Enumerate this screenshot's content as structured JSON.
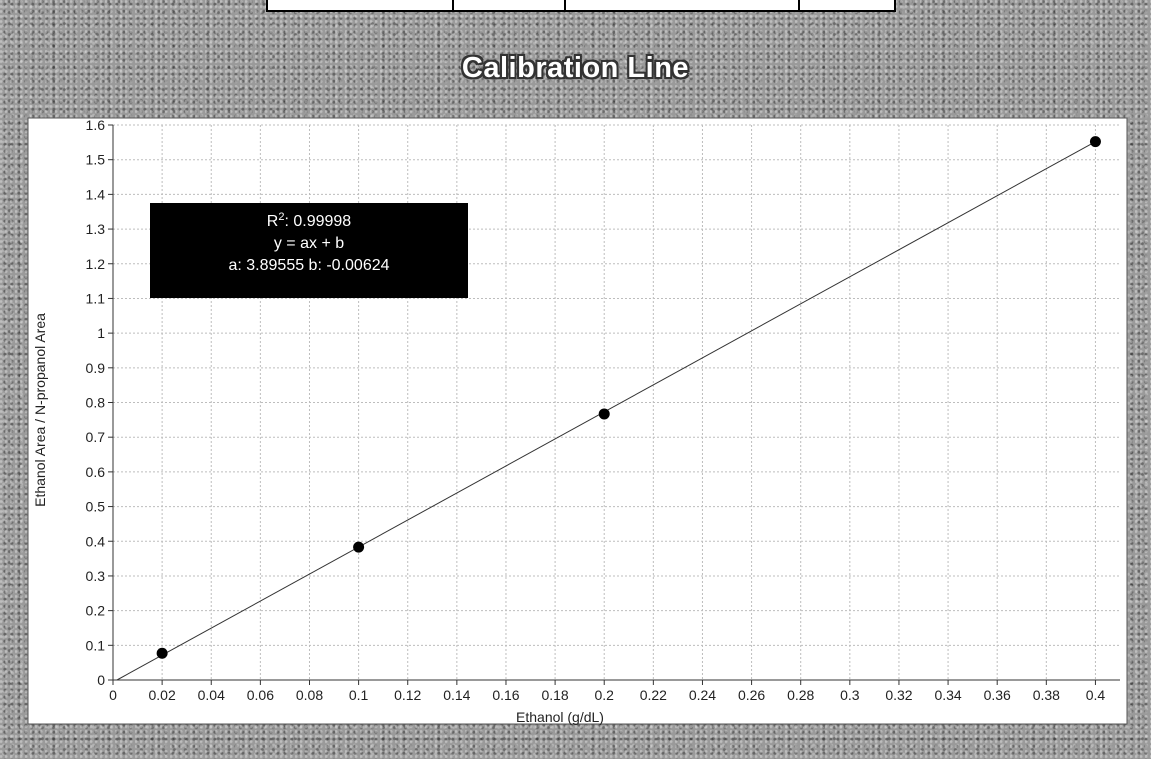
{
  "chart_data": {
    "type": "scatter",
    "title": "Calibration Line",
    "xlabel": "Ethanol (g/dL)",
    "ylabel": "Ethanol Area / N-propanol Area",
    "xlim": [
      0,
      0.41
    ],
    "ylim": [
      0,
      1.6
    ],
    "x_ticks": [
      "0",
      "0.02",
      "0.04",
      "0.06",
      "0.08",
      "0.1",
      "0.12",
      "0.14",
      "0.16",
      "0.18",
      "0.2",
      "0.22",
      "0.24",
      "0.26",
      "0.28",
      "0.3",
      "0.32",
      "0.34",
      "0.36",
      "0.38",
      "0.4"
    ],
    "y_ticks": [
      "0",
      "0.1",
      "0.2",
      "0.3",
      "0.4",
      "0.5",
      "0.6",
      "0.7",
      "0.8",
      "0.9",
      "1",
      "1.1",
      "1.2",
      "1.3",
      "1.4",
      "1.5",
      "1.6"
    ],
    "grid": true,
    "series": [
      {
        "points": [
          {
            "x": 0.02,
            "y": 0.077
          },
          {
            "x": 0.1,
            "y": 0.383
          },
          {
            "x": 0.2,
            "y": 0.767
          },
          {
            "x": 0.4,
            "y": 1.552
          }
        ]
      }
    ],
    "fit_line": {
      "a": 3.89555,
      "b": -0.00624,
      "x_range": [
        0,
        0.4
      ]
    },
    "annotation": {
      "r2_label": "R",
      "r2_sup": "2",
      "r2_value": ": 0.99998",
      "equation": "y = ax + b",
      "coefficients": "a: 3.89555 b: -0.00624"
    }
  }
}
